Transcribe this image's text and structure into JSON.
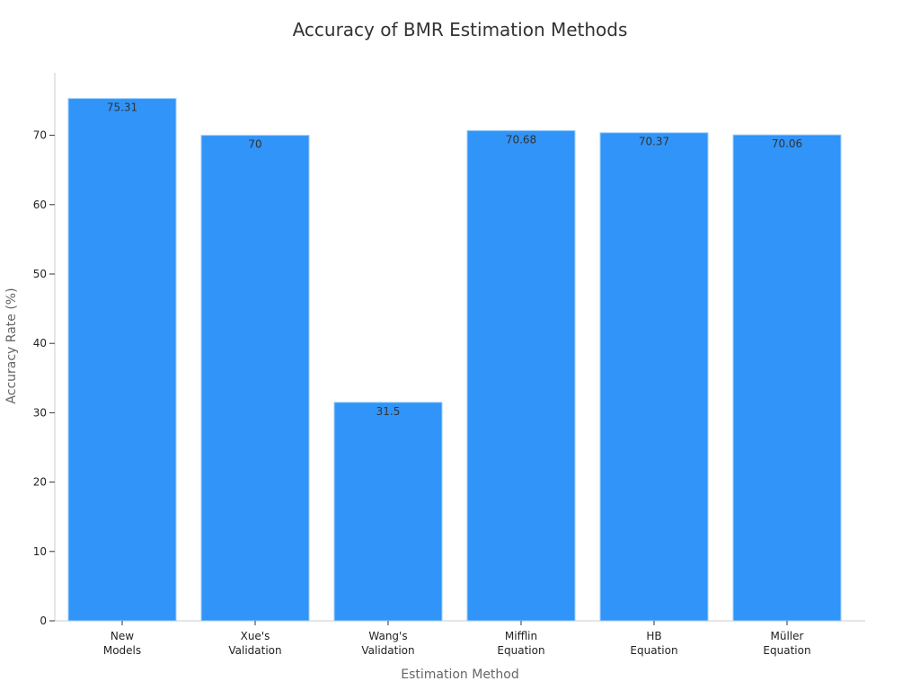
{
  "chart_data": {
    "type": "bar",
    "title": "Accuracy of BMR Estimation Methods",
    "xlabel": "Estimation Method",
    "ylabel": "Accuracy Rate (%)",
    "categories": [
      [
        "New",
        "Models"
      ],
      [
        "Xue's",
        "Validation"
      ],
      [
        "Wang's",
        "Validation"
      ],
      [
        "Mifflin",
        "Equation"
      ],
      [
        "HB",
        "Equation"
      ],
      [
        "Müller",
        "Equation"
      ]
    ],
    "values": [
      75.31,
      70,
      31.5,
      70.68,
      70.37,
      70.06
    ],
    "value_labels": [
      "75.31",
      "70",
      "31.5",
      "70.68",
      "70.37",
      "70.06"
    ],
    "yticks": [
      0,
      10,
      20,
      30,
      40,
      50,
      60,
      70
    ],
    "ylim": [
      0,
      78
    ],
    "grid": false,
    "bar_color": "#3094f8",
    "bar_edge_color": "#9fcdf8"
  }
}
